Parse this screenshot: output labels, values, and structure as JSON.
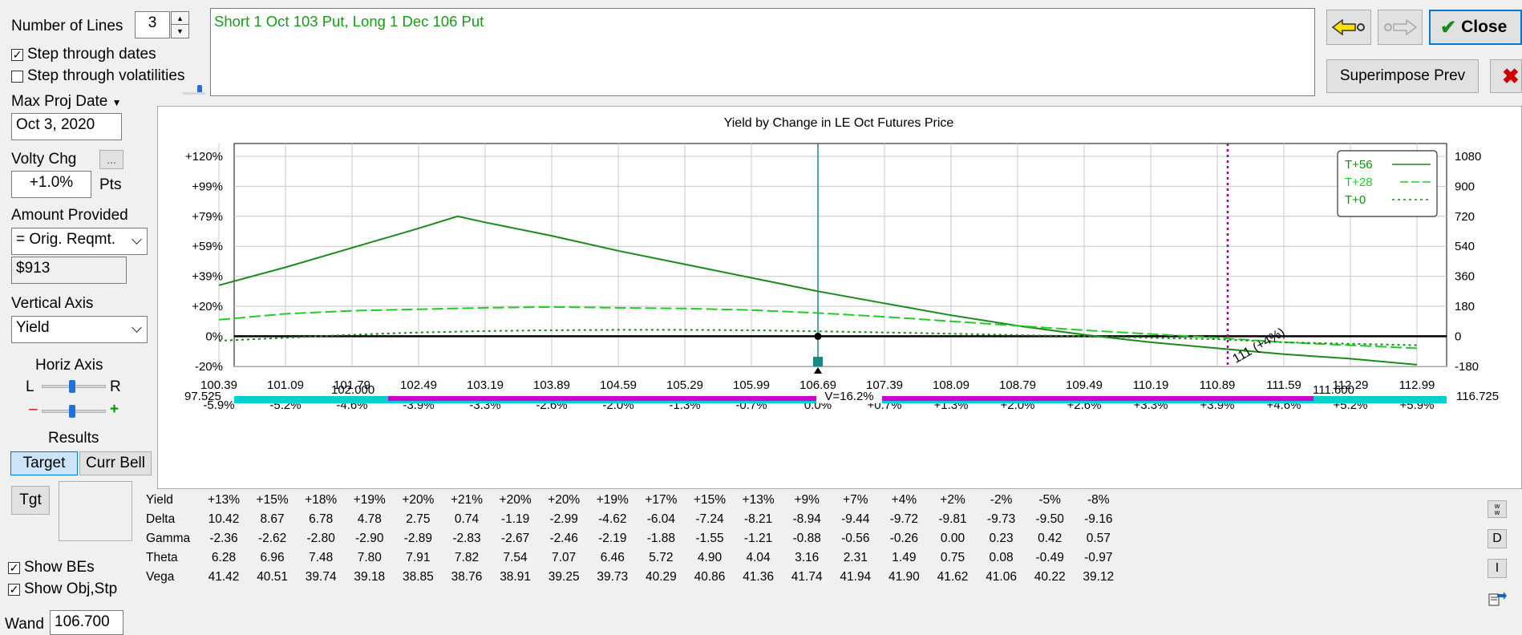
{
  "left_panel": {
    "number_of_lines_label": "Number of Lines",
    "number_of_lines_value": "3",
    "step_dates_label": "Step through dates",
    "step_dates_checked": true,
    "step_vol_label": "Step through volatilities",
    "step_vol_checked": false,
    "max_proj_date_label": "Max Proj Date",
    "max_proj_date_value": "Oct 3, 2020",
    "volty_chg_label": "Volty Chg",
    "volty_chg_button": "...",
    "volty_chg_value": "+1.0%",
    "volty_chg_unit": "Pts",
    "amount_provided_label": "Amount Provided",
    "amount_provided_value": "= Orig. Reqmt.",
    "amount_value": "$913",
    "vertical_axis_label": "Vertical Axis",
    "vertical_axis_value": "Yield",
    "horiz_axis_label": "Horiz Axis",
    "horiz_l": "L",
    "horiz_r": "R",
    "minus": "–",
    "plus": "+",
    "results_label": "Results",
    "target_button": "Target",
    "curr_bell_button": "Curr Bell",
    "tgt_button": "Tgt",
    "show_bes_label": "Show BEs",
    "show_bes_checked": true,
    "show_obj_label": "Show Obj,Stp",
    "show_obj_checked": true,
    "wand_label": "Wand",
    "wand_value": "106.700"
  },
  "description_text": "Short 1 Oct 103 Put, Long 1 Dec 106 Put",
  "right_buttons": {
    "close_label": "Close",
    "superimpose_label": "Superimpose Prev"
  },
  "colors": {
    "green_dark": "#1a8a1a",
    "green_light": "#22cc22",
    "teal": "#138a8a",
    "magenta": "#cc00cc",
    "cyan": "#00d0d0",
    "purple": "#990099"
  },
  "chart_data": {
    "type": "line",
    "title": "Yield by Change in LE Oct Futures Price",
    "x": [
      100.39,
      101.09,
      101.79,
      102.49,
      103.19,
      103.89,
      104.59,
      105.29,
      105.99,
      106.69,
      107.39,
      108.09,
      108.79,
      109.49,
      110.19,
      110.89,
      111.59,
      112.29,
      112.99
    ],
    "x_tick_labels": [
      "100.39",
      "101.09",
      "101.79",
      "102.49",
      "103.19",
      "103.89",
      "104.59",
      "105.29",
      "105.99",
      "106.69",
      "107.39",
      "108.09",
      "108.79",
      "109.49",
      "110.19",
      "110.89",
      "111.59",
      "112.29",
      "112.99"
    ],
    "x_pct_labels": [
      "-5.9%",
      "-5.2%",
      "-4.6%",
      "-3.9%",
      "-3.3%",
      "-2.6%",
      "-2.0%",
      "-1.3%",
      "-0.7%",
      "0.0%",
      "+0.7%",
      "+1.3%",
      "+2.0%",
      "+2.6%",
      "+3.3%",
      "+3.9%",
      "+4.6%",
      "+5.2%",
      "+5.9%"
    ],
    "y_left_ticks": [
      "+120%",
      "+99%",
      "+79%",
      "+59%",
      "+39%",
      "+20%",
      "0%",
      "-20%"
    ],
    "y_right_ticks": [
      "1080",
      "900",
      "720",
      "540",
      "360",
      "180",
      "0",
      "-180"
    ],
    "ylim": [
      -20,
      120
    ],
    "series": [
      {
        "name": "T+56",
        "style": "solid",
        "color": "#1a8a1a",
        "x": [
          100.39,
          101.09,
          101.79,
          102.49,
          102.9,
          103.19,
          103.89,
          104.59,
          105.29,
          105.99,
          106.69,
          107.39,
          108.09,
          108.79,
          109.49,
          110.19,
          110.89,
          111.59,
          112.29,
          112.99
        ],
        "y": [
          34,
          46,
          59,
          72,
          80,
          76,
          67,
          57,
          48,
          39,
          30,
          22,
          14,
          7,
          1,
          -4,
          -8,
          -12,
          -15,
          -19
        ]
      },
      {
        "name": "T+28",
        "style": "dash",
        "color": "#22cc22",
        "x": [
          100.39,
          101.09,
          101.79,
          102.49,
          103.19,
          103.89,
          104.59,
          105.29,
          105.99,
          106.69,
          107.39,
          108.09,
          108.79,
          109.49,
          110.19,
          110.89,
          111.59,
          112.29,
          112.99
        ],
        "y": [
          11,
          15,
          17,
          18,
          19,
          19.5,
          19,
          18.5,
          17.5,
          15.5,
          13,
          10,
          7,
          4,
          1.5,
          -1,
          -4,
          -6,
          -8
        ]
      },
      {
        "name": "T+0",
        "style": "dot",
        "color": "#1a8a1a",
        "x": [
          100.39,
          101.09,
          101.79,
          102.49,
          103.19,
          103.89,
          104.59,
          105.29,
          105.99,
          106.69,
          107.39,
          108.09,
          108.79,
          109.49,
          110.19,
          110.89,
          111.59,
          112.29,
          112.99
        ],
        "y": [
          -3,
          -1,
          1,
          2.5,
          3.5,
          4,
          4.3,
          4.3,
          4,
          3.3,
          2.5,
          1.7,
          0.8,
          0,
          -1,
          -2,
          -4,
          -5,
          -6
        ]
      }
    ],
    "current_price": 106.69,
    "obj_price": 111.0,
    "obj_label": "111 (+4%)",
    "legend_position": "top-right",
    "grid": true,
    "bell": {
      "left_label": "97.525",
      "left_inner_label": "102.000",
      "center_label": "V=16.2%",
      "right_inner_label": "111.600",
      "right_label": "116.725"
    }
  },
  "results_table": {
    "rows": [
      {
        "label": "Yield",
        "values": [
          "+13%",
          "+15%",
          "+18%",
          "+19%",
          "+20%",
          "+21%",
          "+20%",
          "+20%",
          "+19%",
          "+17%",
          "+15%",
          "+13%",
          "+9%",
          "+7%",
          "+4%",
          "+2%",
          "-2%",
          "-5%",
          "-8%"
        ]
      },
      {
        "label": "Delta",
        "values": [
          "10.42",
          "8.67",
          "6.78",
          "4.78",
          "2.75",
          "0.74",
          "-1.19",
          "-2.99",
          "-4.62",
          "-6.04",
          "-7.24",
          "-8.21",
          "-8.94",
          "-9.44",
          "-9.72",
          "-9.81",
          "-9.73",
          "-9.50",
          "-9.16"
        ]
      },
      {
        "label": "Gamma",
        "values": [
          "-2.36",
          "-2.62",
          "-2.80",
          "-2.90",
          "-2.89",
          "-2.83",
          "-2.67",
          "-2.46",
          "-2.19",
          "-1.88",
          "-1.55",
          "-1.21",
          "-0.88",
          "-0.56",
          "-0.26",
          "0.00",
          "0.23",
          "0.42",
          "0.57"
        ]
      },
      {
        "label": "Theta",
        "values": [
          "6.28",
          "6.96",
          "7.48",
          "7.80",
          "7.91",
          "7.82",
          "7.54",
          "7.07",
          "6.46",
          "5.72",
          "4.90",
          "4.04",
          "3.16",
          "2.31",
          "1.49",
          "0.75",
          "0.08",
          "-0.49",
          "-0.97"
        ]
      },
      {
        "label": "Vega",
        "values": [
          "41.42",
          "40.51",
          "39.74",
          "39.18",
          "38.85",
          "38.76",
          "38.91",
          "39.25",
          "39.73",
          "40.29",
          "40.86",
          "41.36",
          "41.74",
          "41.94",
          "41.90",
          "41.62",
          "41.06",
          "40.22",
          "39.12"
        ]
      }
    ]
  },
  "side_buttons": {
    "d_label": "D",
    "i_label": "I"
  }
}
